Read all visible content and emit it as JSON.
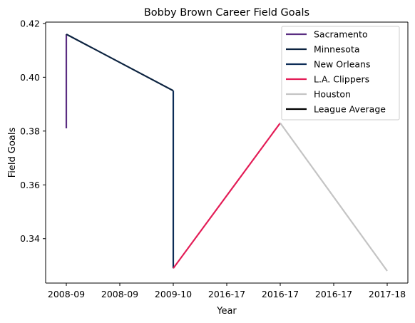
{
  "chart_data": {
    "type": "line",
    "title": "Bobby Brown  Career Field Goals",
    "xlabel": "Year",
    "ylabel": "Field Goals",
    "x_tick_labels": [
      "2008-09",
      "2008-09",
      "2009-10",
      "2016-17",
      "2016-17",
      "2016-17",
      "2017-18"
    ],
    "ylim": [
      0.3235,
      0.4205
    ],
    "y_ticks": [
      0.34,
      0.36,
      0.38,
      0.4,
      0.42
    ],
    "y_tick_labels": [
      "0.34",
      "0.36",
      "0.38",
      "0.40",
      "0.42"
    ],
    "series": [
      {
        "name": "Sacramento",
        "color": "#5a2d81",
        "points": [
          {
            "x": 0,
            "y": 0.381
          },
          {
            "x": 0,
            "y": 0.416
          }
        ]
      },
      {
        "name": "Minnesota",
        "color": "#0c2340",
        "points": [
          {
            "x": 0,
            "y": 0.416
          },
          {
            "x": 1,
            "y": 0.395
          }
        ]
      },
      {
        "name": "New Orleans",
        "color": "#0c2c56",
        "points": [
          {
            "x": 1,
            "y": 0.395
          },
          {
            "x": 1,
            "y": 0.329
          }
        ]
      },
      {
        "name": "L.A. Clippers",
        "color": "#e31c56",
        "points": [
          {
            "x": 1,
            "y": 0.329
          },
          {
            "x": 2,
            "y": 0.383
          }
        ]
      },
      {
        "name": "Houston",
        "color": "#c4c4c4",
        "points": [
          {
            "x": 2,
            "y": 0.383
          },
          {
            "x": 3,
            "y": 0.328
          }
        ]
      },
      {
        "name": "League Average",
        "color": "#000000",
        "points": []
      }
    ],
    "legend_position": "top-right",
    "grid": false
  }
}
